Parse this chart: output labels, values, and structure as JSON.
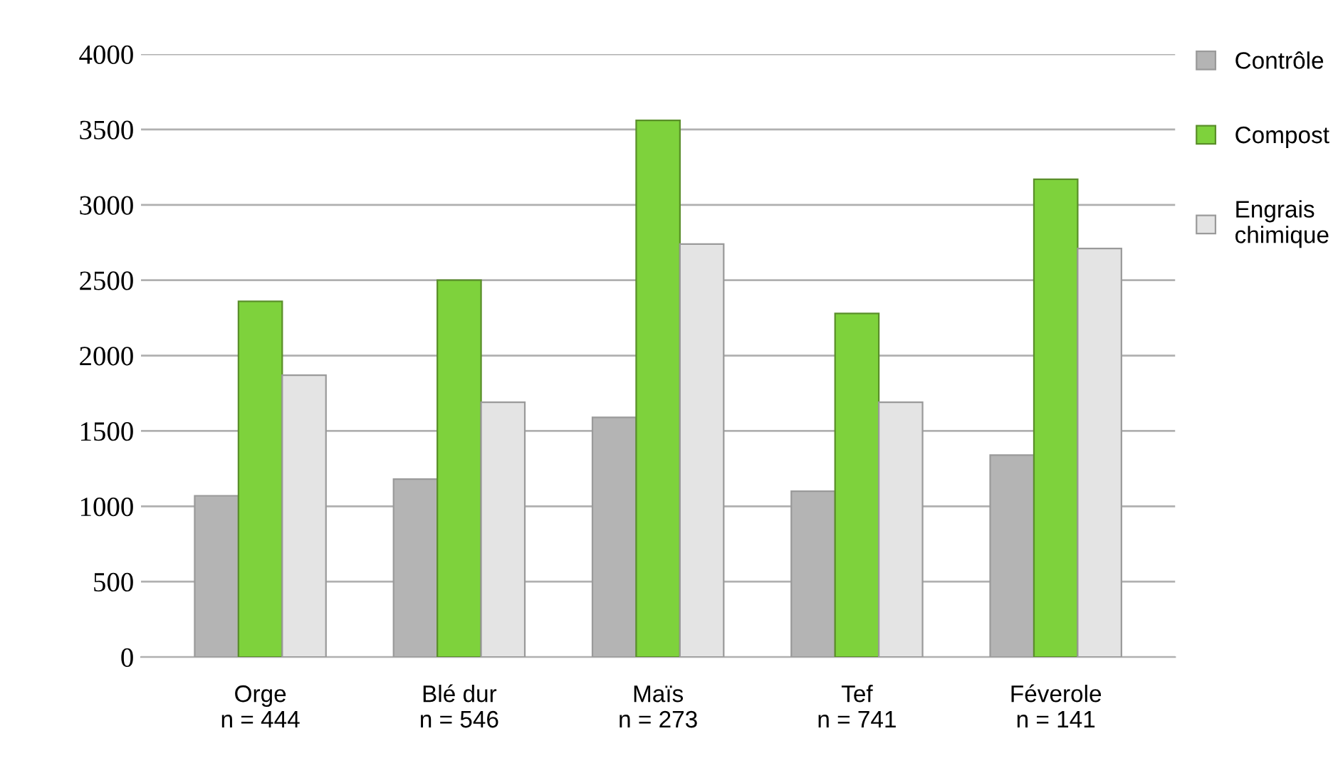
{
  "chart_data": {
    "type": "bar",
    "categories": [
      "Orge\nn = 444",
      "Blé dur\nn = 546",
      "Maïs\nn = 273",
      "Tef\nn = 741",
      "Féverole\nn = 141"
    ],
    "series": [
      {
        "name": "Contrôle",
        "color": "#b4b4b4",
        "values": [
          1070,
          1180,
          1590,
          1100,
          1340
        ]
      },
      {
        "name": "Compost",
        "color": "#7ed23c",
        "values": [
          2360,
          2500,
          3560,
          2280,
          3170
        ]
      },
      {
        "name": "Engrais\nchimique",
        "color": "#e4e4e4",
        "values": [
          1870,
          1690,
          2740,
          1690,
          2710
        ]
      }
    ],
    "ylim": [
      0,
      4000
    ],
    "yticks": [
      0,
      500,
      1000,
      1500,
      2000,
      2500,
      3000,
      3500,
      4000
    ],
    "grid": "y",
    "legend": "right"
  }
}
